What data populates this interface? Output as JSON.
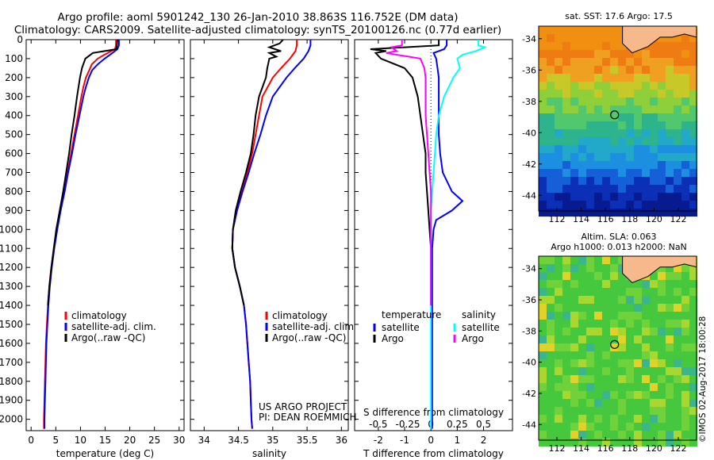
{
  "title_line1": "Argo profile: aoml 5901242_130 26-Jan-2010 38.863S 116.752E (DM data)",
  "title_line2": "Climatology: CARS2009. Satellite-adjusted climatology: synTS_20100126.nc (0.77d earlier)",
  "map_top_label": "sat. SST: 17.6 Argo: 17.5",
  "map_bottom_label1": "Altim. SLA: 0.063",
  "map_bottom_label2": "Argo h1000: 0.013 h2000: NaN",
  "stamp": "©IMOS 02-Aug-2017 18:00:28",
  "credit_line1": "US ARGO PROJECT",
  "credit_line2": "PI: DEAN ROEMMICH",
  "colors": {
    "climatology": "#ff0000",
    "satellite": "#0000ff",
    "argo": "#000000",
    "sat_salinity": "#00ffff",
    "argo_salinity": "#ff00ff"
  },
  "chart_data": [
    {
      "type": "line",
      "xlabel": "temperature (deg C)",
      "ylim": [
        2060,
        0
      ],
      "xlim": [
        -1,
        31
      ],
      "yticks": [
        0,
        100,
        200,
        300,
        400,
        500,
        600,
        700,
        800,
        900,
        1000,
        1100,
        1200,
        1300,
        1400,
        1500,
        1600,
        1700,
        1800,
        1900,
        2000
      ],
      "xticks": [
        0,
        5,
        10,
        15,
        20,
        25,
        30
      ],
      "legend": [
        "climatology",
        "satellite-adj. clim.",
        "Argo(..raw -QC)"
      ],
      "legend_placement": "lower-left",
      "series": [
        {
          "name": "climatology",
          "color": "#ff0000",
          "y": [
            0,
            30,
            50,
            80,
            100,
            130,
            160,
            200,
            250,
            300,
            400,
            500,
            600,
            700,
            800,
            900,
            1000,
            1100,
            1200,
            1300,
            1400,
            1500,
            1600,
            1700,
            1800,
            1900,
            2000,
            2050
          ],
          "x": [
            17.2,
            17.2,
            17.0,
            14.8,
            13.5,
            12.3,
            11.8,
            11.1,
            10.6,
            10.2,
            9.5,
            8.8,
            8.1,
            7.4,
            6.7,
            5.9,
            5.2,
            4.6,
            4.1,
            3.7,
            3.4,
            3.2,
            3.0,
            2.9,
            2.8,
            2.7,
            2.6,
            2.6
          ]
        },
        {
          "name": "satellite-adj. clim.",
          "color": "#0000ff",
          "y": [
            0,
            30,
            50,
            80,
            100,
            130,
            160,
            200,
            250,
            300,
            400,
            500,
            600,
            700,
            800,
            900,
            1000,
            1100,
            1200,
            1300,
            1400,
            1500,
            1600,
            1700,
            1800,
            1900,
            2000,
            2050
          ],
          "x": [
            17.8,
            17.8,
            17.5,
            16.0,
            14.9,
            13.5,
            12.4,
            11.7,
            11.1,
            10.6,
            9.8,
            9.0,
            8.3,
            7.5,
            6.8,
            6.0,
            5.3,
            4.7,
            4.2,
            3.8,
            3.5,
            3.3,
            3.1,
            3.0,
            2.9,
            2.8,
            2.7,
            2.7
          ]
        },
        {
          "name": "Argo(..raw -QC)",
          "color": "#000000",
          "y": [
            0,
            30,
            50,
            70,
            100,
            150,
            200,
            300,
            400,
            500,
            600,
            700,
            800,
            900,
            1000,
            1100,
            1200,
            1300,
            1400
          ],
          "x": [
            17.5,
            17.4,
            17.3,
            12.5,
            11.0,
            10.3,
            9.9,
            9.3,
            8.8,
            8.2,
            7.7,
            7.1,
            6.5,
            5.8,
            5.1,
            4.6,
            4.1,
            3.7,
            3.4
          ]
        }
      ]
    },
    {
      "type": "line",
      "xlabel": "salinity",
      "ylim": [
        2060,
        0
      ],
      "xlim": [
        33.8,
        36.1
      ],
      "xticks": [
        34,
        34.5,
        35,
        35.5,
        36
      ],
      "legend": [
        "climatology",
        "satellite-adj. clim.",
        "Argo(..raw -QC)"
      ],
      "legend_placement": "lower-right",
      "series": [
        {
          "name": "climatology",
          "color": "#ff0000",
          "y": [
            0,
            30,
            60,
            100,
            150,
            200,
            300,
            400,
            500,
            600,
            700,
            800,
            900,
            1000,
            1100,
            1200,
            1300,
            1400,
            1500,
            1600,
            1700,
            1800,
            1900,
            2000,
            2050
          ],
          "x": [
            35.35,
            35.35,
            35.33,
            35.25,
            35.12,
            35.0,
            34.85,
            34.8,
            34.75,
            34.7,
            34.63,
            34.55,
            34.48,
            34.42,
            34.41,
            34.45,
            34.52,
            34.58,
            34.61,
            34.63,
            34.65,
            34.67,
            34.68,
            34.69,
            34.7
          ]
        },
        {
          "name": "satellite-adj. clim.",
          "color": "#0000ff",
          "y": [
            0,
            30,
            60,
            100,
            150,
            200,
            300,
            400,
            500,
            600,
            700,
            800,
            900,
            1000,
            1100,
            1200,
            1300,
            1400,
            1500,
            1600,
            1700,
            1800,
            1900,
            2000,
            2050
          ],
          "x": [
            35.55,
            35.55,
            35.52,
            35.45,
            35.32,
            35.2,
            35.0,
            34.9,
            34.82,
            34.73,
            34.65,
            34.56,
            34.48,
            34.42,
            34.41,
            34.45,
            34.52,
            34.58,
            34.61,
            34.63,
            34.65,
            34.67,
            34.68,
            34.69,
            34.7
          ]
        },
        {
          "name": "Argo(..raw -QC)",
          "color": "#000000",
          "y": [
            0,
            20,
            40,
            60,
            70,
            90,
            100,
            150,
            200,
            300,
            400,
            500,
            600,
            700,
            800,
            900,
            1000,
            1100,
            1200,
            1300,
            1400
          ],
          "x": [
            35.15,
            35.1,
            34.95,
            35.12,
            34.95,
            35.05,
            34.95,
            34.92,
            34.9,
            34.8,
            34.75,
            34.72,
            34.68,
            34.61,
            34.53,
            34.46,
            34.42,
            34.41,
            34.45,
            34.52,
            34.58
          ]
        }
      ]
    },
    {
      "type": "line",
      "xlabel": "T difference from climatology",
      "secondary_xlabel": "S difference from climatology",
      "ylim": [
        2060,
        0
      ],
      "xlim": [
        -2.9,
        3.1
      ],
      "xticks": [
        -2,
        -1,
        0,
        1,
        2
      ],
      "secondary_xticks": [
        "-0.5",
        "-0.25",
        "0",
        "0.25",
        "0.5"
      ],
      "legend_groups": [
        {
          "heading": "temperature",
          "entries": [
            "satellite",
            "Argo"
          ]
        },
        {
          "heading": "salinity",
          "entries": [
            "satellite",
            "Argo"
          ]
        }
      ],
      "series": [
        {
          "name": "temperature satellite",
          "color": "#0000ff",
          "y": [
            0,
            30,
            50,
            70,
            100,
            150,
            200,
            300,
            400,
            500,
            600,
            700,
            800,
            850,
            900,
            950,
            1000,
            1100,
            1200,
            1300,
            1400,
            1500,
            1600,
            1800,
            2000,
            2050
          ],
          "x": [
            0.6,
            0.6,
            0.5,
            0.1,
            0.2,
            0.25,
            0.3,
            0.3,
            0.3,
            0.3,
            0.35,
            0.45,
            0.8,
            1.2,
            0.8,
            0.2,
            0.1,
            0.05,
            0.05,
            0.05,
            0.05,
            0.05,
            0.05,
            0.05,
            0.05,
            0.05
          ]
        },
        {
          "name": "temperature Argo",
          "color": "#000000",
          "y": [
            0,
            30,
            50,
            60,
            70,
            100,
            150,
            200,
            300,
            400,
            500,
            600,
            700,
            800,
            900,
            1000,
            1100,
            1200,
            1300,
            1400
          ],
          "x": [
            0.3,
            0.3,
            -2.3,
            -1.7,
            -2.1,
            -1.9,
            -1.0,
            -0.7,
            -0.5,
            -0.4,
            -0.3,
            -0.2,
            -0.2,
            -0.15,
            -0.1,
            -0.05,
            0.0,
            0.0,
            0.0,
            0.0
          ]
        },
        {
          "name": "salinity satellite",
          "color": "#00ffff",
          "y": [
            0,
            30,
            40,
            60,
            80,
            100,
            150,
            200,
            300,
            400,
            500,
            600,
            700,
            800,
            900,
            1000,
            1100,
            1200,
            1300,
            1400,
            1500,
            1600,
            1800,
            2000,
            2050
          ],
          "x": [
            1.8,
            1.8,
            2.05,
            1.7,
            1.2,
            1.0,
            1.1,
            0.85,
            0.5,
            0.3,
            0.2,
            0.15,
            0.1,
            0.05,
            0.0,
            0.0,
            0.0,
            0.0,
            0.0,
            0.0,
            0.0,
            0.0,
            0.0,
            0.0,
            0.0
          ]
        },
        {
          "name": "salinity Argo",
          "color": "#ff00ff",
          "y": [
            0,
            30,
            40,
            60,
            70,
            100,
            150,
            200,
            300,
            400,
            500,
            600,
            700,
            800,
            900,
            1000,
            1100,
            1200,
            1300,
            1400
          ],
          "x": [
            -1.1,
            -1.1,
            -1.5,
            -1.3,
            -1.7,
            -0.4,
            -0.25,
            -0.2,
            -0.2,
            -0.2,
            -0.15,
            -0.1,
            -0.05,
            0.0,
            0.0,
            0.0,
            0.0,
            0.0,
            0.0,
            0.0
          ]
        }
      ]
    },
    {
      "type": "heatmap",
      "title": "sat. SST: 17.6 Argo: 17.5",
      "xlim": [
        110.5,
        123.5
      ],
      "ylim": [
        -45,
        -33.2
      ],
      "xticks": [
        112,
        114,
        116,
        118,
        120,
        122
      ],
      "yticks": [
        -34,
        -36,
        -38,
        -40,
        -42,
        -44
      ],
      "profile_location": [
        116.752,
        -38.863
      ]
    },
    {
      "type": "heatmap",
      "title": "Altim. SLA: 0.063",
      "subtitle": "Argo h1000: 0.013 h2000: NaN",
      "xlim": [
        110.5,
        123.5
      ],
      "ylim": [
        -45,
        -33.2
      ],
      "xticks": [
        112,
        114,
        116,
        118,
        120,
        122
      ],
      "yticks": [
        -34,
        -36,
        -38,
        -40,
        -42,
        -44
      ],
      "profile_location": [
        116.752,
        -38.863
      ]
    }
  ]
}
